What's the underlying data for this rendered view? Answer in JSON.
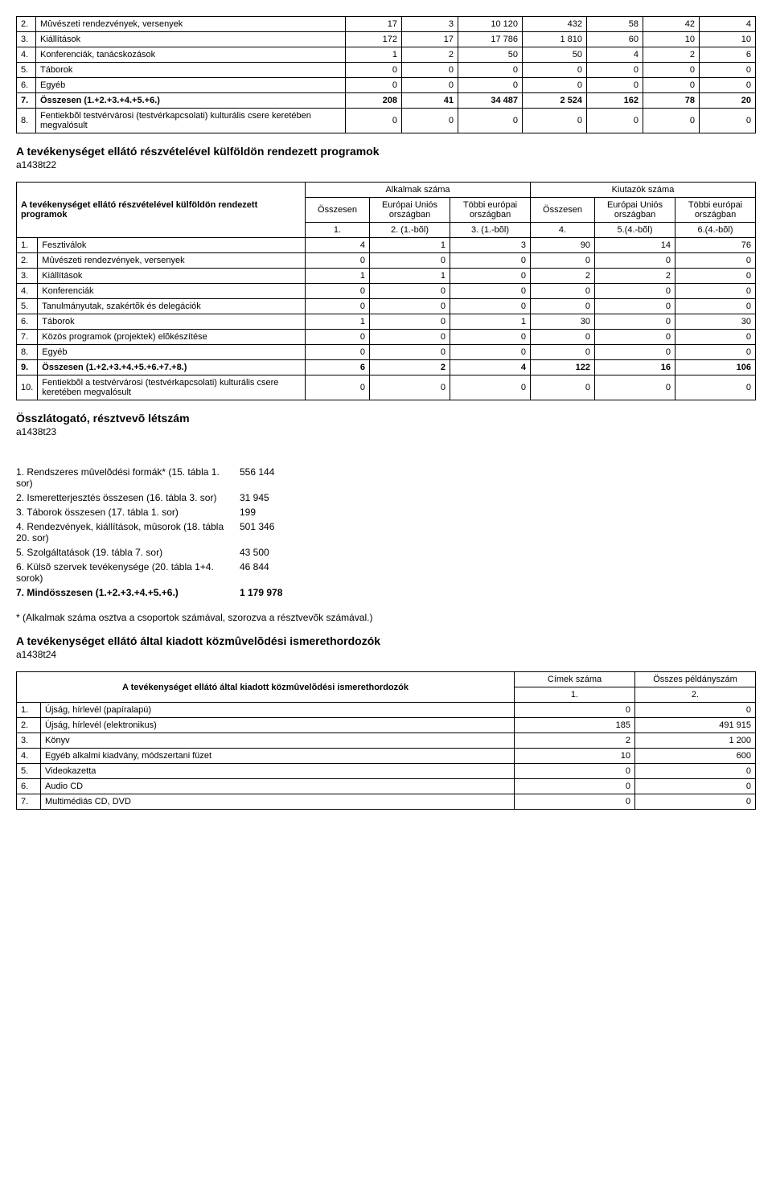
{
  "table1": {
    "rows": [
      {
        "n": "2.",
        "label": "Mûvészeti rendezvények, versenyek",
        "c": [
          "17",
          "3",
          "10 120",
          "432",
          "58",
          "42",
          "4"
        ]
      },
      {
        "n": "3.",
        "label": "Kiállítások",
        "c": [
          "172",
          "17",
          "17 786",
          "1 810",
          "60",
          "10",
          "10"
        ]
      },
      {
        "n": "4.",
        "label": "Konferenciák, tanácskozások",
        "c": [
          "1",
          "2",
          "50",
          "50",
          "4",
          "2",
          "6"
        ]
      },
      {
        "n": "5.",
        "label": "Táborok",
        "c": [
          "0",
          "0",
          "0",
          "0",
          "0",
          "0",
          "0"
        ]
      },
      {
        "n": "6.",
        "label": "Egyéb",
        "c": [
          "0",
          "0",
          "0",
          "0",
          "0",
          "0",
          "0"
        ]
      },
      {
        "n": "7.",
        "label": "Összesen (1.+2.+3.+4.+5.+6.)",
        "c": [
          "208",
          "41",
          "34 487",
          "2 524",
          "162",
          "78",
          "20"
        ],
        "bold": true
      },
      {
        "n": "8.",
        "label": "Fentiekbõl testvérvárosi (testvérkapcsolati) kulturális csere keretében megvalósult",
        "c": [
          "0",
          "0",
          "0",
          "0",
          "0",
          "0",
          "0"
        ]
      }
    ]
  },
  "section2": {
    "title": "A tevékenységet ellátó részvételével külföldön rendezett programok",
    "id": "a1438t22"
  },
  "table2": {
    "header_main": "A tevékenységet ellátó részvételével külföldön rendezett programok",
    "group1": "Alkalmak száma",
    "group2": "Kiutazók száma",
    "h_oss": "Összesen",
    "h_eu": "Európai Uniós országban",
    "h_te": "Többi európai országban",
    "sub": [
      "1.",
      "2. (1.-bõl)",
      "3. (1.-bõl)",
      "4.",
      "5.(4.-bõl)",
      "6.(4.-bõl)"
    ],
    "rows": [
      {
        "n": "1.",
        "label": "Fesztiválok",
        "c": [
          "4",
          "1",
          "3",
          "90",
          "14",
          "76"
        ]
      },
      {
        "n": "2.",
        "label": "Mûvészeti rendezvények, versenyek",
        "c": [
          "0",
          "0",
          "0",
          "0",
          "0",
          "0"
        ]
      },
      {
        "n": "3.",
        "label": "Kiállítások",
        "c": [
          "1",
          "1",
          "0",
          "2",
          "2",
          "0"
        ]
      },
      {
        "n": "4.",
        "label": "Konferenciák",
        "c": [
          "0",
          "0",
          "0",
          "0",
          "0",
          "0"
        ]
      },
      {
        "n": "5.",
        "label": "Tanulmányutak, szakértõk és delegációk",
        "c": [
          "0",
          "0",
          "0",
          "0",
          "0",
          "0"
        ]
      },
      {
        "n": "6.",
        "label": "Táborok",
        "c": [
          "1",
          "0",
          "1",
          "30",
          "0",
          "30"
        ]
      },
      {
        "n": "7.",
        "label": "Közös programok (projektek) elõkészítése",
        "c": [
          "0",
          "0",
          "0",
          "0",
          "0",
          "0"
        ]
      },
      {
        "n": "8.",
        "label": "Egyéb",
        "c": [
          "0",
          "0",
          "0",
          "0",
          "0",
          "0"
        ]
      },
      {
        "n": "9.",
        "label": "Összesen (1.+2.+3.+4.+5.+6.+7.+8.)",
        "c": [
          "6",
          "2",
          "4",
          "122",
          "16",
          "106"
        ],
        "bold": true
      },
      {
        "n": "10.",
        "label": "Fentiekbõl a testvérvárosi (testvérkapcsolati) kulturális csere keretében megvalósult",
        "c": [
          "0",
          "0",
          "0",
          "0",
          "0",
          "0"
        ]
      }
    ]
  },
  "section3": {
    "title": "Összlátogató, résztvevõ létszám",
    "id": "a1438t23"
  },
  "list3": {
    "items": [
      {
        "label": "1. Rendszeres mûvelõdési formák* (15. tábla 1. sor)",
        "val": "556 144"
      },
      {
        "label": "2. Ismeretterjesztés összesen (16. tábla 3. sor)",
        "val": "31 945"
      },
      {
        "label": "3. Táborok összesen (17. tábla 1. sor)",
        "val": "199"
      },
      {
        "label": "4. Rendezvények, kiállítások, mûsorok (18. tábla 20. sor)",
        "val": "501 346"
      },
      {
        "label": "5. Szolgáltatások (19. tábla 7. sor)",
        "val": "43 500"
      },
      {
        "label": "6. Külsõ szervek tevékenysége (20. tábla 1+4. sorok)",
        "val": "46 844"
      },
      {
        "label": "7. Mindösszesen (1.+2.+3.+4.+5.+6.)",
        "val": "1 179 978",
        "bold": true
      }
    ],
    "note": "* (Alkalmak száma osztva a csoportok számával, szorozva a résztvevõk számával.)"
  },
  "section4": {
    "title": "A tevékenységet ellátó által kiadott közmûvelõdési ismerethordozók",
    "id": "a1438t24"
  },
  "table4": {
    "header_main": "A tevékenységet ellátó által kiadott közmûvelõdési ismerethordozók",
    "h1": "Címek száma",
    "h2": "Összes példányszám",
    "s1": "1.",
    "s2": "2.",
    "rows": [
      {
        "n": "1.",
        "label": "Újság, hírlevél (papíralapú)",
        "c": [
          "0",
          "0"
        ]
      },
      {
        "n": "2.",
        "label": "Újság, hírlevél (elektronikus)",
        "c": [
          "185",
          "491 915"
        ]
      },
      {
        "n": "3.",
        "label": "Könyv",
        "c": [
          "2",
          "1 200"
        ]
      },
      {
        "n": "4.",
        "label": "Egyéb alkalmi kiadvány, módszertani füzet",
        "c": [
          "10",
          "600"
        ]
      },
      {
        "n": "5.",
        "label": "Videokazetta",
        "c": [
          "0",
          "0"
        ]
      },
      {
        "n": "6.",
        "label": "Audio CD",
        "c": [
          "0",
          "0"
        ]
      },
      {
        "n": "7.",
        "label": "Multimédiás CD, DVD",
        "c": [
          "0",
          "0"
        ]
      }
    ]
  }
}
